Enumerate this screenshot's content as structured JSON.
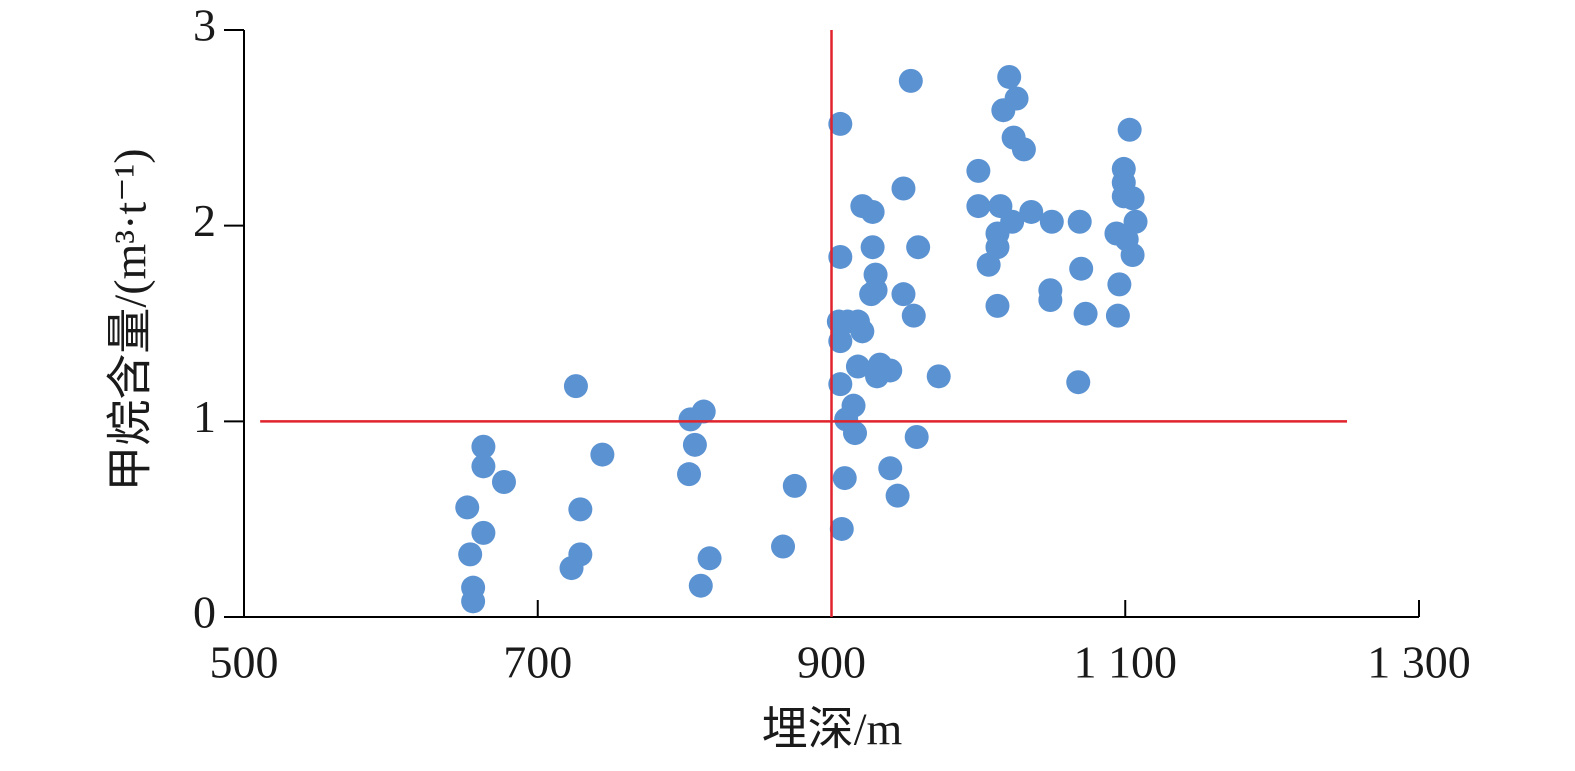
{
  "chart_data": {
    "type": "scatter",
    "x_label": "埋深/m",
    "y_label": "甲烷含量/(m³·t⁻¹)",
    "xlim": [
      500,
      1300
    ],
    "ylim": [
      0,
      3
    ],
    "xticks": [
      500,
      700,
      900,
      {
        "value": 1100,
        "label": "1 100"
      },
      {
        "value": 1300,
        "label": "1 300"
      }
    ],
    "yticks": [
      0,
      1,
      2,
      3
    ],
    "color": "#5b92d2",
    "x": [
      652,
      654,
      656,
      656,
      663,
      663,
      663,
      677,
      726,
      729,
      729,
      723,
      744,
      804,
      813,
      807,
      803,
      811,
      817,
      867,
      875,
      906,
      906,
      905,
      906,
      906,
      911,
      918,
      921,
      910,
      915,
      916,
      909,
      907,
      921,
      928,
      928,
      930,
      930,
      927,
      918,
      933,
      931,
      940,
      940,
      945,
      954,
      949,
      959,
      949,
      956,
      973,
      958,
      1000,
      1000,
      1021,
      1017,
      1026,
      1024,
      1031,
      1015,
      1036,
      1023,
      1013,
      1013,
      1007,
      1013,
      1050,
      1049,
      1049,
      1069,
      1070,
      1073,
      1068,
      1103,
      1099,
      1099,
      1099,
      1105,
      1107,
      1094,
      1101,
      1105,
      1096,
      1095
    ],
    "values": [
      0.56,
      0.32,
      0.15,
      0.08,
      0.87,
      0.77,
      0.43,
      0.69,
      1.18,
      0.55,
      0.32,
      0.25,
      0.83,
      1.01,
      1.05,
      0.88,
      0.73,
      0.16,
      0.3,
      0.36,
      0.67,
      2.52,
      1.84,
      1.51,
      1.41,
      1.19,
      1.51,
      1.51,
      1.46,
      1.01,
      1.08,
      0.94,
      0.71,
      0.45,
      2.1,
      2.07,
      1.89,
      1.75,
      1.67,
      1.65,
      1.28,
      1.29,
      1.23,
      1.26,
      0.76,
      0.62,
      2.74,
      2.19,
      1.89,
      1.65,
      1.54,
      1.23,
      0.92,
      2.28,
      2.1,
      2.76,
      2.59,
      2.65,
      2.45,
      2.39,
      2.1,
      2.07,
      2.02,
      1.96,
      1.89,
      1.8,
      1.59,
      2.02,
      1.67,
      1.62,
      2.02,
      1.78,
      1.55,
      1.2,
      2.49,
      2.29,
      2.22,
      2.15,
      2.14,
      2.02,
      1.96,
      1.93,
      1.85,
      1.7,
      1.54
    ],
    "reference_lines": [
      {
        "x": 900,
        "color": "#e0232c"
      },
      {
        "y": 1,
        "xrange": [
          511,
          1251
        ],
        "color": "#e0232c"
      }
    ]
  }
}
